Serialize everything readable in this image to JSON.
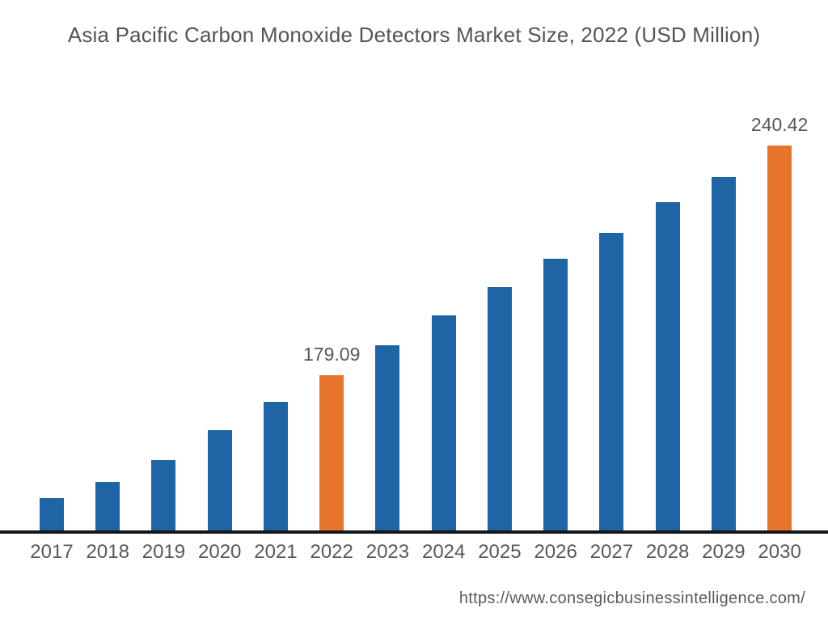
{
  "chart": {
    "title": "Asia Pacific Carbon Monoxide Detectors Market Size, 2022 (USD Million)",
    "source_url": "https://www.consegicbusinessintelligence.com/"
  },
  "chart_data": {
    "type": "bar",
    "title": "Asia Pacific Carbon Monoxide Detectors Market Size, 2022 (USD Million)",
    "xlabel": "",
    "ylabel": "USD Million",
    "grid": false,
    "legend": false,
    "y_axis_visible": false,
    "ylim": [
      137.6,
      257.7
    ],
    "categories": [
      "2017",
      "2018",
      "2019",
      "2020",
      "2021",
      "2022",
      "2023",
      "2024",
      "2025",
      "2026",
      "2027",
      "2028",
      "2029",
      "2030"
    ],
    "values": [
      146.3,
      150.6,
      156.4,
      164.4,
      172.0,
      179.09,
      187.1,
      195.1,
      202.6,
      210.2,
      217.1,
      225.3,
      232.0,
      240.42
    ],
    "data_labels": [
      null,
      null,
      null,
      null,
      null,
      "179.09",
      null,
      null,
      null,
      null,
      null,
      null,
      null,
      "240.42"
    ],
    "highlighted": [
      false,
      false,
      false,
      false,
      false,
      true,
      false,
      false,
      false,
      false,
      false,
      false,
      false,
      true
    ],
    "colors": {
      "bar_default": "#1E65A6",
      "bar_highlight": "#E8742C",
      "axis_line": "#161616",
      "title_text": "#535458",
      "label_text": "#58595b"
    }
  }
}
